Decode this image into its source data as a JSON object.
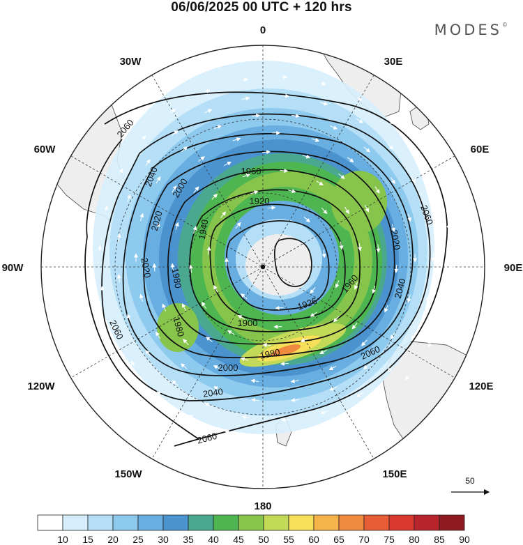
{
  "title": "06/06/2025  00 UTC  + 120 hrs",
  "brand": "MODES",
  "brand_mark": "©",
  "longitude_labels": {
    "lon_0": "0",
    "lon_30e": "30E",
    "lon_60e": "60E",
    "lon_90e": "90E",
    "lon_120e": "120E",
    "lon_150e": "150E",
    "lon_180": "180",
    "lon_150w": "150W",
    "lon_120w": "120W",
    "lon_90w": "90W",
    "lon_60w": "60W",
    "lon_30w": "30W"
  },
  "contours": {
    "c2060_nw": "2060",
    "c2040_w": "2040",
    "c2020_w": "2020",
    "c2000_w": "2000",
    "c1960_top": "1960",
    "c1920": "1920",
    "c1980_w": "1980",
    "c1940_w": "1940",
    "c1900": "1900",
    "c1926": "1926",
    "c1960_se": "1960",
    "c2020_e": "2020",
    "c2060_e": "2060",
    "c2040_e": "2040",
    "c1980_s": "1980",
    "c2000_s": "2000",
    "c2060_se": "2060",
    "c2040_s": "2040",
    "c2060_s": "2060",
    "c2020_sw": "2020",
    "c2060_sw": "2060",
    "c1980_sw": "1980"
  },
  "vector_reference": {
    "label": "50"
  },
  "colorbar": {
    "labels": [
      "10",
      "15",
      "20",
      "25",
      "30",
      "35",
      "40",
      "45",
      "50",
      "55",
      "60",
      "65",
      "70",
      "75",
      "80",
      "85",
      "90"
    ],
    "colors": [
      "#ffffff",
      "#d6eefc",
      "#b4dff7",
      "#8ec9ee",
      "#68aee1",
      "#4b93cf",
      "#4aa88f",
      "#4eb650",
      "#86c44b",
      "#c3d958",
      "#f6e05a",
      "#f6b24b",
      "#f08a3e",
      "#e75c35",
      "#d9382e",
      "#b8232c",
      "#8e1a1f"
    ]
  },
  "wind_speed_units": "",
  "colors": {
    "land": "#eeeeee",
    "coast": "#555555",
    "contour": "#111111",
    "vector": "#ffffff"
  }
}
